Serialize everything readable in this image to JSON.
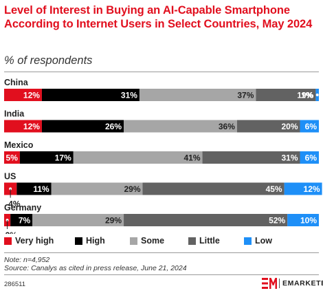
{
  "header": {
    "title": "Level of Interest in Buying an AI-Capable Smartphone According to Internet Users in Select Countries, May 2024",
    "subtitle": "% of respondents"
  },
  "chart_data": {
    "type": "bar",
    "orientation": "horizontal",
    "stacked": true,
    "categories": [
      "China",
      "India",
      "Mexico",
      "US",
      "Germany"
    ],
    "series": [
      {
        "name": "Very high",
        "color": "#e10f1e",
        "values": [
          12,
          12,
          5,
          4,
          2
        ]
      },
      {
        "name": "High",
        "color": "#000000",
        "values": [
          31,
          26,
          17,
          11,
          7
        ]
      },
      {
        "name": "Some",
        "color": "#a6a6a6",
        "values": [
          37,
          36,
          41,
          29,
          29
        ]
      },
      {
        "name": "Little",
        "color": "#626262",
        "values": [
          19,
          20,
          31,
          45,
          52
        ]
      },
      {
        "name": "Low",
        "color": "#1e8ff7",
        "values": [
          1,
          6,
          6,
          12,
          10
        ]
      }
    ],
    "value_suffix": "%",
    "xlim": [
      0,
      100
    ],
    "legend_position": "bottom"
  },
  "notes": {
    "note": "Note: n=4,952",
    "source": "Source: Canalys as cited in press release, June 21, 2024"
  },
  "footer": {
    "chart_id": "286511",
    "brand": "EMARKETER"
  }
}
